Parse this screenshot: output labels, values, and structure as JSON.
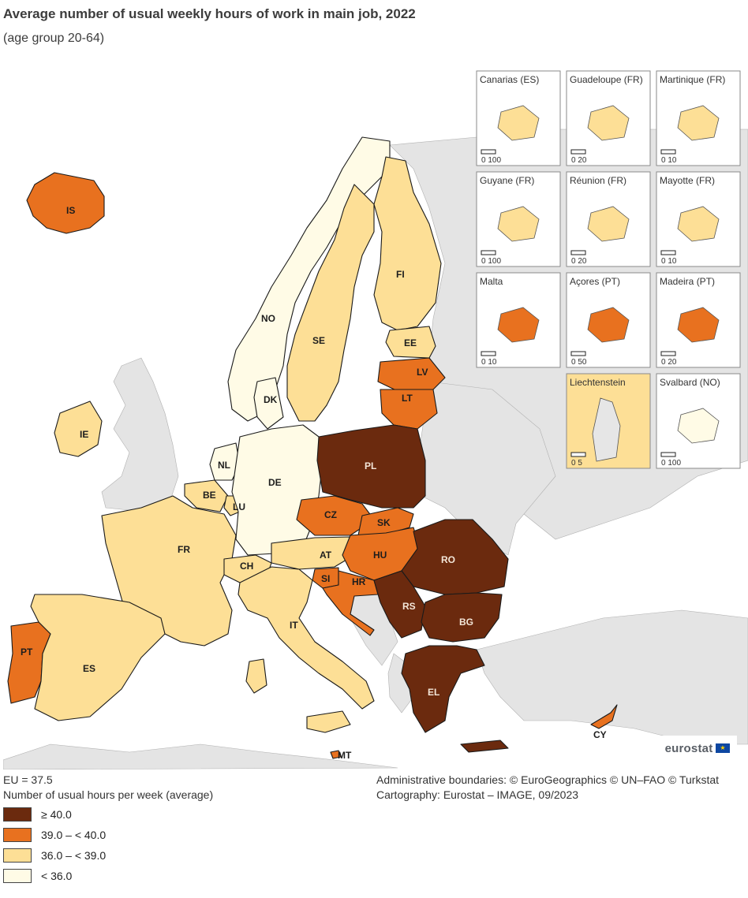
{
  "header": {
    "title": "Average number of usual weekly hours of work in main job, 2022",
    "subtitle": "(age group 20-64)"
  },
  "colors": {
    "c40": "#6b2a0e",
    "c39": "#e8711f",
    "c36": "#fddf96",
    "c0": "#fffbe6",
    "non_data": "#e6e6e6",
    "sea": "#ffffff",
    "border": "#1a1a1a"
  },
  "countries": {
    "IS": "IS",
    "NO": "NO",
    "SE": "SE",
    "FI": "FI",
    "EE": "EE",
    "LV": "LV",
    "LT": "LT",
    "DK": "DK",
    "IE": "IE",
    "NL": "NL",
    "BE": "BE",
    "LU": "LU",
    "DE": "DE",
    "PL": "PL",
    "CZ": "CZ",
    "SK": "SK",
    "FR": "FR",
    "CH": "CH",
    "AT": "AT",
    "HU": "HU",
    "RO": "RO",
    "SI": "SI",
    "HR": "HR",
    "RS": "RS",
    "BG": "BG",
    "IT": "IT",
    "PT": "PT",
    "ES": "ES",
    "EL": "EL",
    "MT": "MT",
    "CY": "CY"
  },
  "country_classes": {
    "IS": "39.0 – < 40.0",
    "NO": "< 36.0",
    "SE": "36.0 – < 39.0",
    "FI": "36.0 – < 39.0",
    "EE": "36.0 – < 39.0",
    "LV": "39.0 – < 40.0",
    "LT": "39.0 – < 40.0",
    "DK": "< 36.0",
    "IE": "36.0 – < 39.0",
    "NL": "< 36.0",
    "BE": "36.0 – < 39.0",
    "LU": "36.0 – < 39.0",
    "DE": "< 36.0",
    "PL": "≥ 40.0",
    "CZ": "39.0 – < 40.0",
    "SK": "39.0 – < 40.0",
    "FR": "36.0 – < 39.0",
    "CH": "36.0 – < 39.0",
    "AT": "36.0 – < 39.0",
    "HU": "39.0 – < 40.0",
    "RO": "≥ 40.0",
    "SI": "39.0 – < 40.0",
    "HR": "39.0 – < 40.0",
    "RS": "≥ 40.0",
    "BG": "≥ 40.0",
    "IT": "36.0 – < 39.0",
    "PT": "39.0 – < 40.0",
    "ES": "36.0 – < 39.0",
    "EL": "≥ 40.0",
    "MT": "39.0 – < 40.0",
    "CY": "39.0 – < 40.0"
  },
  "insets": [
    {
      "title": "Canarias (ES)",
      "scale": "0   100"
    },
    {
      "title": "Guadeloupe (FR)",
      "scale": "0   20"
    },
    {
      "title": "Martinique (FR)",
      "scale": "0  10"
    },
    {
      "title": "Guyane (FR)",
      "scale": "0   100"
    },
    {
      "title": "Réunion (FR)",
      "scale": "0   20"
    },
    {
      "title": "Mayotte (FR)",
      "scale": "0  10"
    },
    {
      "title": "Malta",
      "scale": "0   10"
    },
    {
      "title": "Açores (PT)",
      "scale": "0   50"
    },
    {
      "title": "Madeira (PT)",
      "scale": "0   20"
    },
    {
      "title": "Liechtenstein",
      "scale": "0   5"
    },
    {
      "title": "Svalbard (NO)",
      "scale": "0  100"
    }
  ],
  "logo": {
    "text": "eurostat"
  },
  "footer": {
    "eu_value": "EU = 37.5",
    "unit_label": "Number of usual hours per week (average)",
    "credits_1": "Administrative boundaries: © EuroGeographics © UN–FAO © Turkstat",
    "credits_2": "Cartography: Eurostat – IMAGE, 09/2023"
  },
  "legend": [
    {
      "label": "≥ 40.0",
      "color": "#6b2a0e"
    },
    {
      "label": "39.0 – < 40.0",
      "color": "#e8711f"
    },
    {
      "label": "36.0 – < 39.0",
      "color": "#fddf96"
    },
    {
      "label": "< 36.0",
      "color": "#fffbe6"
    }
  ]
}
